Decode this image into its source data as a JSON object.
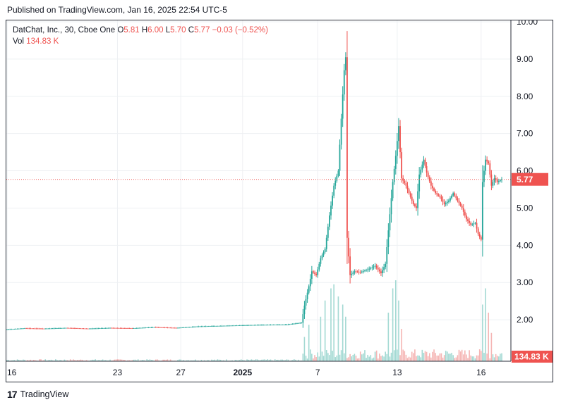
{
  "header": {
    "published": "Published on TradingView.com, Jan 16, 2025 22:54 UTC-5"
  },
  "legend": {
    "symbol": "DatChat, Inc., 30, Cboe One",
    "o_label": "O",
    "o": "5.81",
    "h_label": "H",
    "h": "6.00",
    "l_label": "L",
    "l": "5.70",
    "c_label": "C",
    "c": "5.77",
    "change": "−0.03 (−0.52%)",
    "vol_label": "Vol",
    "vol": "134.83 K"
  },
  "branding": {
    "logo": "17",
    "name": "TradingView"
  },
  "colors": {
    "up": "#26a69a",
    "down": "#ef5350",
    "up_vol": "#a3d9d3",
    "down_vol": "#f5b5b4",
    "grid": "#eef0f3",
    "text": "#131722"
  },
  "chart_data": {
    "type": "candlestick",
    "interval": "30",
    "y_axis": {
      "min": 1.0,
      "max": 10.0,
      "ticks": [
        "2.00",
        "3.00",
        "4.00",
        "5.00",
        "6.00",
        "7.00",
        "8.00",
        "9.00",
        "10.00"
      ]
    },
    "x_ticks": [
      "16",
      "23",
      "27",
      "2025",
      "7",
      "13",
      "16"
    ],
    "price_tag": "5.77",
    "volume_tag": "134.83 K",
    "waypoints": [
      [
        0,
        1.74
      ],
      [
        12,
        1.77
      ],
      [
        25,
        1.76
      ],
      [
        40,
        1.78
      ],
      [
        55,
        1.76
      ],
      [
        70,
        1.78
      ],
      [
        85,
        1.77
      ],
      [
        100,
        1.8
      ],
      [
        115,
        1.78
      ],
      [
        130,
        1.82
      ],
      [
        150,
        1.84
      ],
      [
        170,
        1.86
      ],
      [
        190,
        1.87
      ],
      [
        200,
        1.92
      ],
      [
        202,
        2.38
      ],
      [
        205,
        2.9
      ],
      [
        207,
        3.3
      ],
      [
        210,
        3.2
      ],
      [
        213,
        3.65
      ],
      [
        216,
        3.9
      ],
      [
        219,
        4.8
      ],
      [
        222,
        5.6
      ],
      [
        225,
        6.0
      ],
      [
        227,
        7.4
      ],
      [
        229,
        8.7
      ],
      [
        230,
        9.05
      ],
      [
        231,
        4.2
      ],
      [
        233,
        3.2
      ],
      [
        236,
        3.3
      ],
      [
        240,
        3.28
      ],
      [
        245,
        3.35
      ],
      [
        250,
        3.45
      ],
      [
        254,
        3.25
      ],
      [
        257,
        3.5
      ],
      [
        259,
        4.4
      ],
      [
        262,
        5.7
      ],
      [
        264,
        6.4
      ],
      [
        266,
        7.2
      ],
      [
        268,
        5.8
      ],
      [
        271,
        5.6
      ],
      [
        273,
        5.4
      ],
      [
        276,
        5.1
      ],
      [
        278,
        5.0
      ],
      [
        280,
        5.9
      ],
      [
        283,
        6.3
      ],
      [
        285,
        5.95
      ],
      [
        288,
        5.6
      ],
      [
        291,
        5.4
      ],
      [
        294,
        5.3
      ],
      [
        297,
        5.1
      ],
      [
        300,
        5.2
      ],
      [
        303,
        5.4
      ],
      [
        306,
        5.2
      ],
      [
        309,
        5.0
      ],
      [
        312,
        4.7
      ],
      [
        315,
        4.55
      ],
      [
        318,
        4.6
      ],
      [
        320,
        4.3
      ],
      [
        322,
        4.15
      ],
      [
        323,
        5.7
      ],
      [
        325,
        6.3
      ],
      [
        327,
        6.2
      ],
      [
        329,
        5.6
      ],
      [
        331,
        5.8
      ],
      [
        333,
        5.7
      ],
      [
        336,
        5.77
      ]
    ],
    "volume_spikes": [
      {
        "x": 202,
        "v": 0.3
      },
      {
        "x": 205,
        "v": 0.45
      },
      {
        "x": 213,
        "v": 0.55
      },
      {
        "x": 216,
        "v": 0.75
      },
      {
        "x": 220,
        "v": 0.9
      },
      {
        "x": 222,
        "v": 0.95
      },
      {
        "x": 225,
        "v": 0.8
      },
      {
        "x": 228,
        "v": 0.7
      },
      {
        "x": 230,
        "v": 0.55
      },
      {
        "x": 259,
        "v": 0.6
      },
      {
        "x": 262,
        "v": 0.9
      },
      {
        "x": 264,
        "v": 1.0
      },
      {
        "x": 266,
        "v": 0.75
      },
      {
        "x": 268,
        "v": 0.4
      },
      {
        "x": 323,
        "v": 0.7
      },
      {
        "x": 325,
        "v": 0.9
      },
      {
        "x": 327,
        "v": 0.6
      },
      {
        "x": 329,
        "v": 0.35
      }
    ]
  }
}
